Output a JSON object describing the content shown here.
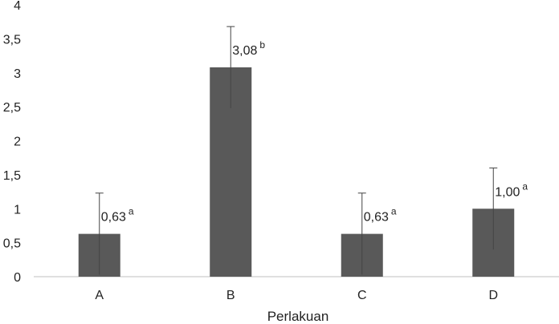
{
  "chart_data": {
    "type": "bar",
    "categories": [
      "A",
      "B",
      "C",
      "D"
    ],
    "values": [
      0.63,
      3.08,
      0.63,
      1.0
    ],
    "errors": [
      0.6,
      0.6,
      0.6,
      0.6
    ],
    "data_labels": [
      "0,63",
      "3,08",
      "0,63",
      "1,00"
    ],
    "significance": [
      "a",
      "b",
      "a",
      "a"
    ],
    "xlabel": "Perlakuan",
    "ylabel": "",
    "ylim": [
      0,
      4
    ],
    "yticks": [
      0,
      0.5,
      1,
      1.5,
      2,
      2.5,
      3,
      3.5,
      4
    ],
    "ytick_labels": [
      "0",
      "0,5",
      "1",
      "1,5",
      "2",
      "2,5",
      "3",
      "3,5",
      "4"
    ],
    "grid": false,
    "bar_color": "#595959"
  }
}
